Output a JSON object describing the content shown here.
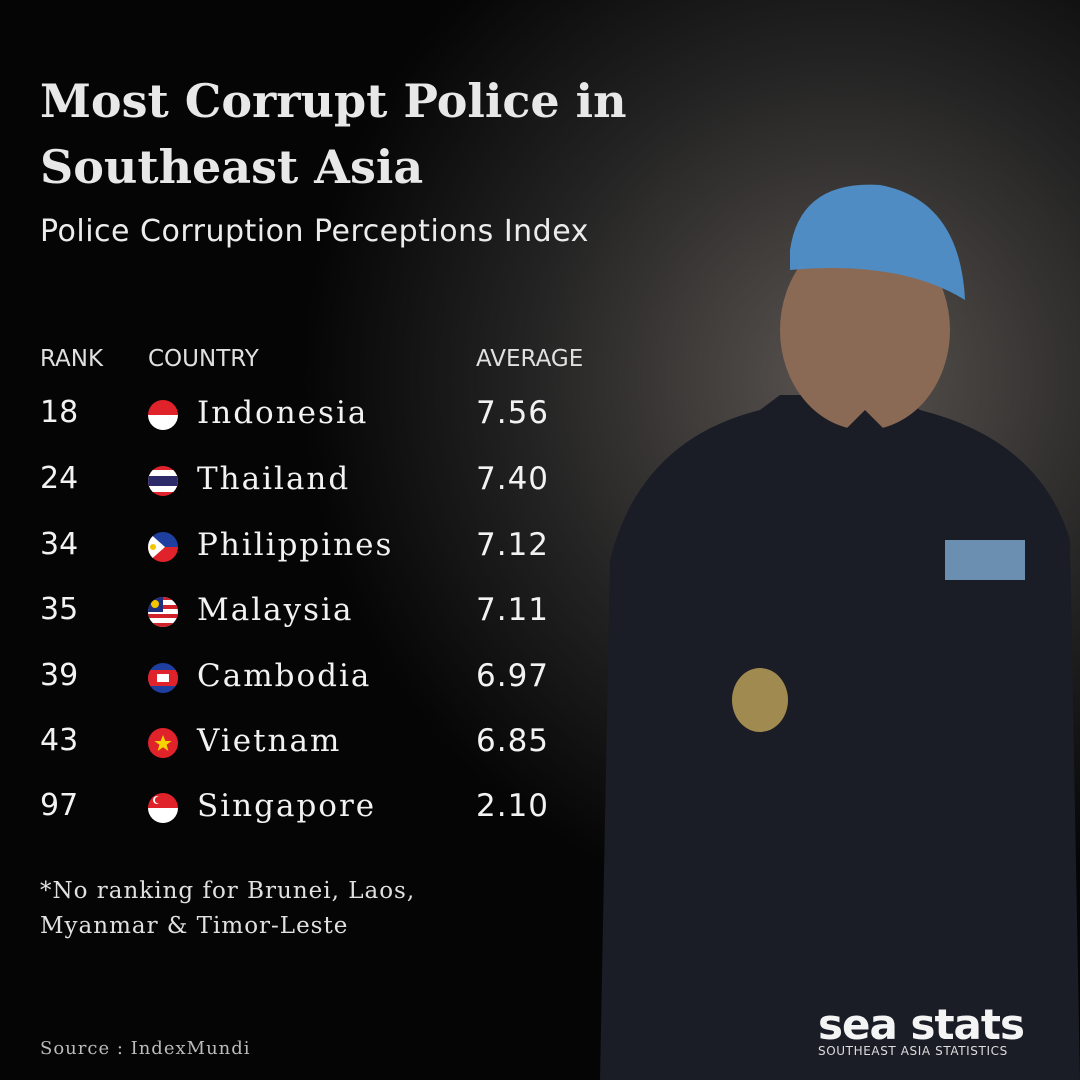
{
  "header": {
    "title_lines": [
      "Most Corrupt Police in",
      "Southeast Asia"
    ],
    "subtitle": "Police Corruption Perceptions Index"
  },
  "table": {
    "columns": [
      "RANK",
      "COUNTRY",
      "AVERAGE"
    ],
    "rows": [
      [
        "18",
        "Indonesia",
        "7.56"
      ],
      [
        "24",
        "Thailand",
        "7.40"
      ],
      [
        "34",
        "Philippines",
        "7.12"
      ],
      [
        "35",
        "Malaysia",
        "7.11"
      ],
      [
        "39",
        "Cambodia",
        "6.97"
      ],
      [
        "43",
        "Vietnam",
        "6.85"
      ],
      [
        "97",
        "Singapore",
        "2.10"
      ]
    ]
  },
  "note_lines": [
    "*No ranking for Brunei, Laos,",
    "Myanmar & Timor-Leste"
  ],
  "source": "Source : IndexMundi",
  "logo": {
    "name": "sea stats",
    "tagline": "SOUTHEAST ASIA STATISTICS"
  }
}
